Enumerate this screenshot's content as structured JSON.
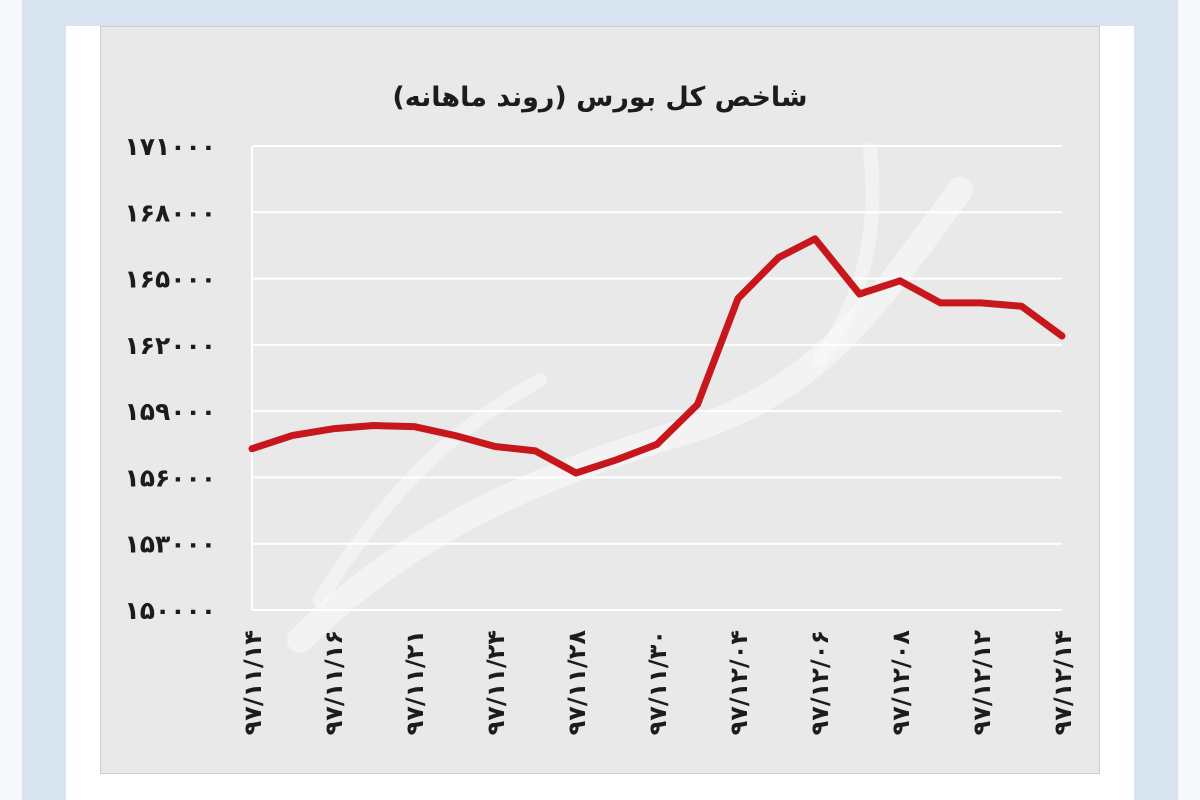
{
  "chart_data": {
    "type": "line",
    "title": "شاخص کل بورس (روند ماهانه)",
    "xlabel": "",
    "ylabel": "",
    "ylim": [
      150000,
      171000
    ],
    "yticks": [
      150000,
      153000,
      156000,
      159000,
      162000,
      165000,
      168000,
      171000
    ],
    "ytick_labels": [
      "۱۵۰۰۰۰",
      "۱۵۳۰۰۰",
      "۱۵۶۰۰۰",
      "۱۵۹۰۰۰",
      "۱۶۲۰۰۰",
      "۱۶۵۰۰۰",
      "۱۶۸۰۰۰",
      "۱۷۱۰۰۰"
    ],
    "x_labels": [
      "۹۷/۱۱/۱۴",
      "۹۷/۱۱/۱۶",
      "۹۷/۱۱/۲۱",
      "۹۷/۱۱/۲۴",
      "۹۷/۱۱/۲۸",
      "۹۷/۱۱/۳۰",
      "۹۷/۱۲/۰۴",
      "۹۷/۱۲/۰۶",
      "۹۷/۱۲/۰۸",
      "۹۷/۱۲/۱۲",
      "۹۷/۱۲/۱۴"
    ],
    "series": [
      {
        "x_index": [
          0,
          0.5,
          1,
          1.5,
          2,
          2.5,
          3,
          3.5,
          4,
          4.5,
          5,
          5.5,
          6,
          6.5,
          6.95,
          7.5,
          8,
          8.5,
          9,
          9.5,
          10
        ],
        "values": [
          157300,
          157900,
          158200,
          158350,
          158300,
          157900,
          157400,
          157200,
          156200,
          156800,
          157500,
          159300,
          164100,
          165950,
          166800,
          164300,
          164900,
          163900,
          163900,
          163750,
          162400
        ]
      }
    ],
    "grid": true,
    "line_color": "#c8161d",
    "watermark_color": "#ffffff"
  }
}
